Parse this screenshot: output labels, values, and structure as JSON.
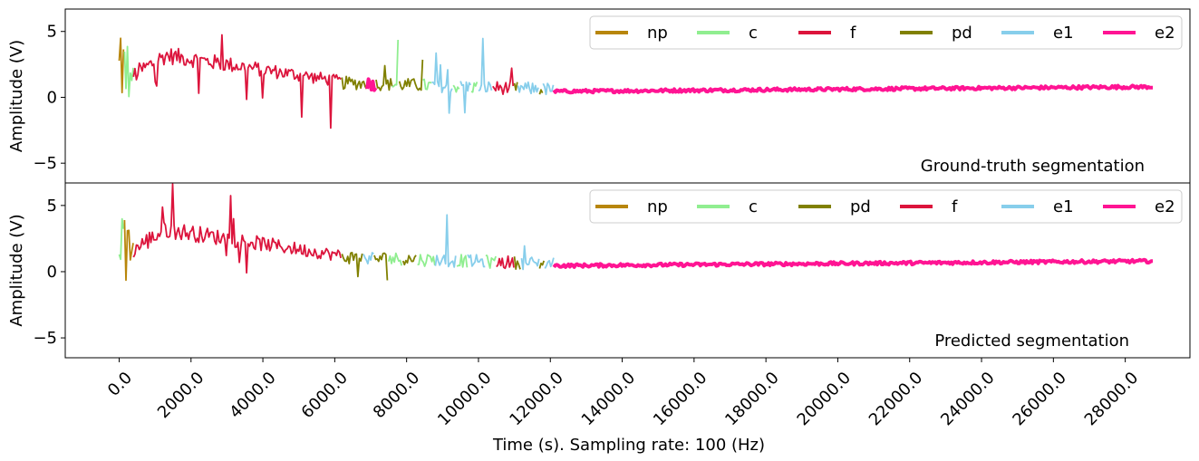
{
  "chart_data": {
    "type": "line",
    "x_label": "Time (s). Sampling rate: 100 (Hz)",
    "x_range": [
      -1500,
      29800
    ],
    "x_ticks": [
      "0.0",
      "2000.0",
      "4000.0",
      "6000.0",
      "8000.0",
      "10000.0",
      "12000.0",
      "14000.0",
      "16000.0",
      "18000.0",
      "20000.0",
      "22000.0",
      "24000.0",
      "26000.0",
      "28000.0"
    ],
    "x_tick_values": [
      0,
      2000,
      4000,
      6000,
      8000,
      10000,
      12000,
      14000,
      16000,
      18000,
      20000,
      22000,
      24000,
      26000,
      28000
    ],
    "colors": {
      "np": "#b8860b",
      "c": "#90ee90",
      "f": "#dc143c",
      "pd": "#808000",
      "e1": "#87ceeb",
      "e2": "#ff1493"
    },
    "panels": [
      {
        "y_label": "Amplitude (V)",
        "y_range": [
          -6.5,
          6.7
        ],
        "y_ticks": [
          5,
          0,
          -5
        ],
        "y_tick_labels": [
          "5",
          "0",
          "−5"
        ],
        "annotation": "Ground-truth segmentation",
        "legend": [
          "np",
          "c",
          "f",
          "pd",
          "e1",
          "e2"
        ],
        "segments": [
          {
            "label": "np",
            "start": 0,
            "end": 150
          },
          {
            "label": "c",
            "start": 150,
            "end": 400
          },
          {
            "label": "f",
            "start": 400,
            "end": 6200
          },
          {
            "label": "pd",
            "start": 6200,
            "end": 6900
          },
          {
            "label": "e2",
            "start": 6900,
            "end": 7150
          },
          {
            "label": "pd",
            "start": 7150,
            "end": 7600
          },
          {
            "label": "c",
            "start": 7600,
            "end": 7800
          },
          {
            "label": "pd",
            "start": 7800,
            "end": 8450
          },
          {
            "label": "c",
            "start": 8450,
            "end": 8700
          },
          {
            "label": "e1",
            "start": 8700,
            "end": 9300
          },
          {
            "label": "c",
            "start": 9300,
            "end": 9500
          },
          {
            "label": "e1",
            "start": 9500,
            "end": 9800
          },
          {
            "label": "c",
            "start": 9800,
            "end": 10000
          },
          {
            "label": "e1",
            "start": 10000,
            "end": 10400
          },
          {
            "label": "f",
            "start": 10400,
            "end": 11000
          },
          {
            "label": "pd",
            "start": 11000,
            "end": 11100
          },
          {
            "label": "e1",
            "start": 11100,
            "end": 11700
          },
          {
            "label": "pd",
            "start": 11700,
            "end": 11800
          },
          {
            "label": "e1",
            "start": 11800,
            "end": 12100
          },
          {
            "label": "e2",
            "start": 12100,
            "end": 28800
          }
        ]
      },
      {
        "y_label": "Amplitude (V)",
        "y_range": [
          -6.5,
          6.7
        ],
        "y_ticks": [
          5,
          0,
          -5
        ],
        "y_tick_labels": [
          "5",
          "0",
          "−5"
        ],
        "annotation": "Predicted segmentation",
        "legend": [
          "np",
          "c",
          "pd",
          "f",
          "e1",
          "e2"
        ],
        "segments": [
          {
            "label": "c",
            "start": 0,
            "end": 150
          },
          {
            "label": "np",
            "start": 150,
            "end": 400
          },
          {
            "label": "f",
            "start": 400,
            "end": 6200
          },
          {
            "label": "pd",
            "start": 6200,
            "end": 6800
          },
          {
            "label": "e1",
            "start": 6800,
            "end": 7100
          },
          {
            "label": "pd",
            "start": 7100,
            "end": 7500
          },
          {
            "label": "c",
            "start": 7500,
            "end": 7900
          },
          {
            "label": "pd",
            "start": 7900,
            "end": 8300
          },
          {
            "label": "c",
            "start": 8300,
            "end": 8800
          },
          {
            "label": "e1",
            "start": 8800,
            "end": 9400
          },
          {
            "label": "c",
            "start": 9400,
            "end": 9700
          },
          {
            "label": "e1",
            "start": 9700,
            "end": 10200
          },
          {
            "label": "c",
            "start": 10200,
            "end": 10500
          },
          {
            "label": "f",
            "start": 10500,
            "end": 11000
          },
          {
            "label": "pd",
            "start": 11000,
            "end": 11200
          },
          {
            "label": "e1",
            "start": 11200,
            "end": 11700
          },
          {
            "label": "pd",
            "start": 11700,
            "end": 11850
          },
          {
            "label": "e1",
            "start": 11850,
            "end": 12100
          },
          {
            "label": "e2",
            "start": 12100,
            "end": 28800
          }
        ]
      }
    ]
  }
}
